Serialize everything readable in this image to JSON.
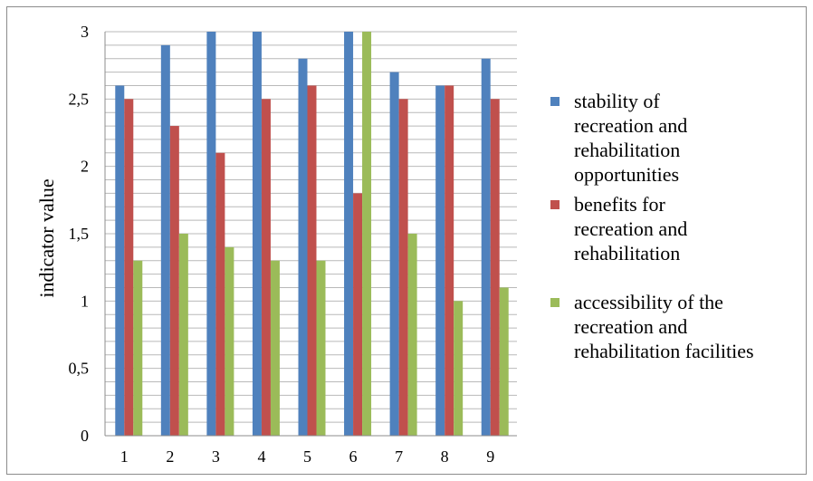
{
  "chart_data": {
    "type": "bar",
    "title": "",
    "xlabel": "",
    "ylabel": "indicator value",
    "ylim": [
      0,
      3
    ],
    "yticks": [
      0,
      0.5,
      1,
      1.5,
      2,
      2.5,
      3
    ],
    "ytick_labels": [
      "0",
      "0,5",
      "1",
      "1,5",
      "2",
      "2,5",
      "3"
    ],
    "categories": [
      "1",
      "2",
      "3",
      "4",
      "5",
      "6",
      "7",
      "8",
      "9"
    ],
    "grid": true,
    "legend_position": "right",
    "series": [
      {
        "name": "stability of recreation and rehabilitation opportunities",
        "legend_text": "stability of\nrecreation and\nrehabilitation\nopportunities",
        "color": "#4f81bd",
        "values": [
          2.6,
          2.9,
          3.0,
          3.0,
          2.8,
          3.0,
          2.7,
          2.6,
          2.8
        ]
      },
      {
        "name": "benefits for recreation and rehabilitation",
        "legend_text": "benefits for\nrecreation and\nrehabilitation",
        "color": "#c0504d",
        "values": [
          2.5,
          2.3,
          2.1,
          2.5,
          2.6,
          1.8,
          2.5,
          2.6,
          2.5
        ]
      },
      {
        "name": "accessibility of the recreation and rehabilitation facilities",
        "legend_text": "accessibility of the\nrecreation and\nrehabilitation facilities",
        "color": "#9bbb59",
        "values": [
          1.3,
          1.5,
          1.4,
          1.3,
          1.3,
          3.0,
          1.5,
          1.0,
          1.1
        ]
      }
    ]
  }
}
